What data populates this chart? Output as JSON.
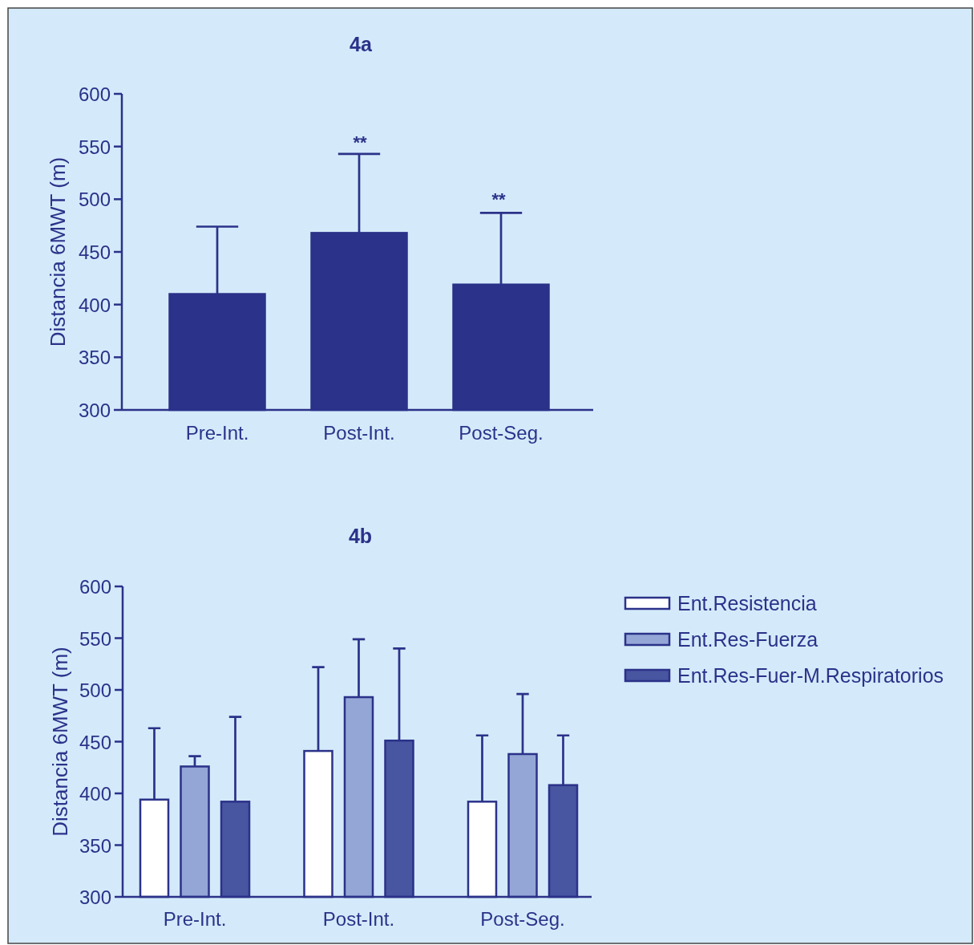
{
  "chart_data": [
    {
      "type": "bar",
      "title": "4a",
      "ylabel": "Distancia 6MWT (m)",
      "categories": [
        "Pre-Int.",
        "Post-Int.",
        "Post-Seg."
      ],
      "values": [
        410,
        468,
        419
      ],
      "color": "#2b3289",
      "errors": [
        [
          410,
          474
        ],
        [
          468,
          543
        ],
        [
          419,
          487
        ]
      ],
      "ylim": [
        300,
        600
      ],
      "yticks": [
        300,
        350,
        400,
        450,
        500,
        550,
        600
      ],
      "annotations": [
        "**",
        "**"
      ]
    },
    {
      "type": "bar",
      "title": "4b",
      "ylabel": "Distancia 6MWT (m)",
      "categories": [
        "Pre-Int.",
        "Post-Int.",
        "Post-Seg."
      ],
      "series": [
        {
          "name": "Ent.Resistencia",
          "color": "#ffffff",
          "values": [
            394,
            441,
            392
          ],
          "errors": [
            [
              394,
              463
            ],
            [
              441,
              522
            ],
            [
              392,
              456
            ]
          ]
        },
        {
          "name": "Ent.Res-Fuerza",
          "color": "#94a6d6",
          "values": [
            426,
            493,
            438
          ],
          "errors": [
            [
              426,
              436
            ],
            [
              493,
              549
            ],
            [
              438,
              496
            ]
          ]
        },
        {
          "name": "Ent.Res-Fuer-M.Respiratorios",
          "color": "#4855a0",
          "values": [
            392,
            451,
            408
          ],
          "errors": [
            [
              392,
              474
            ],
            [
              451,
              540
            ],
            [
              408,
              456
            ]
          ]
        }
      ],
      "ylim": [
        300,
        600
      ],
      "yticks": [
        300,
        350,
        400,
        450,
        500,
        550,
        600
      ],
      "legend": "right"
    }
  ]
}
